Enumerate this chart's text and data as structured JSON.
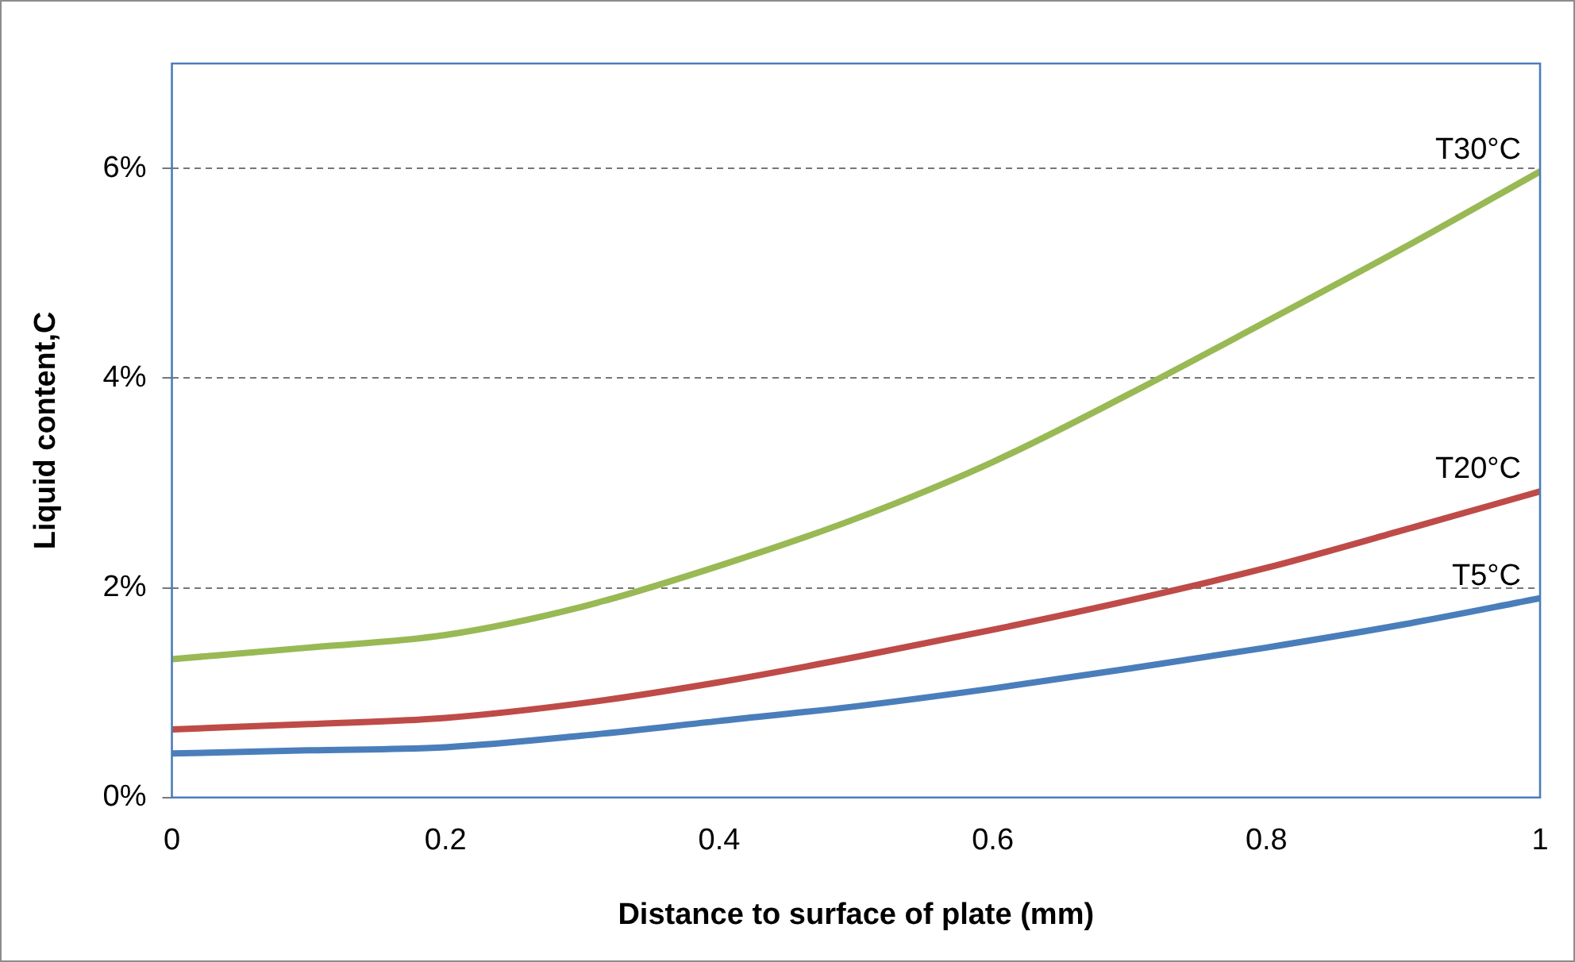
{
  "chart_data": {
    "type": "line",
    "xlabel": "Distance to surface of plate (mm)",
    "ylabel": "Liquid content,C",
    "x": [
      0,
      0.1,
      0.2,
      0.3,
      0.4,
      0.5,
      0.6,
      0.7,
      0.8,
      0.9,
      1
    ],
    "series": [
      {
        "name": "T5°C",
        "color": "#4a7ebb",
        "values": [
          0.42,
          0.45,
          0.48,
          0.59,
          0.73,
          0.87,
          1.04,
          1.23,
          1.43,
          1.65,
          1.9
        ]
      },
      {
        "name": "T20°C",
        "color": "#be4b48",
        "values": [
          0.65,
          0.7,
          0.76,
          0.9,
          1.1,
          1.34,
          1.6,
          1.88,
          2.19,
          2.55,
          2.92
        ]
      },
      {
        "name": "T30°C",
        "color": "#98b954",
        "values": [
          1.32,
          1.43,
          1.55,
          1.82,
          2.21,
          2.66,
          3.2,
          3.85,
          4.54,
          5.24,
          5.97
        ]
      }
    ],
    "xlim": [
      0,
      1
    ],
    "xticks": [
      0,
      0.2,
      0.4,
      0.6,
      0.8,
      1
    ],
    "ylim": [
      0,
      7
    ],
    "yticks": [
      {
        "value": 0,
        "label": "0%"
      },
      {
        "value": 2,
        "label": "2%"
      },
      {
        "value": 4,
        "label": "4%"
      },
      {
        "value": 6,
        "label": "6%"
      }
    ],
    "grid": "y",
    "legend": false,
    "marker": "none",
    "line_style": "solid"
  }
}
